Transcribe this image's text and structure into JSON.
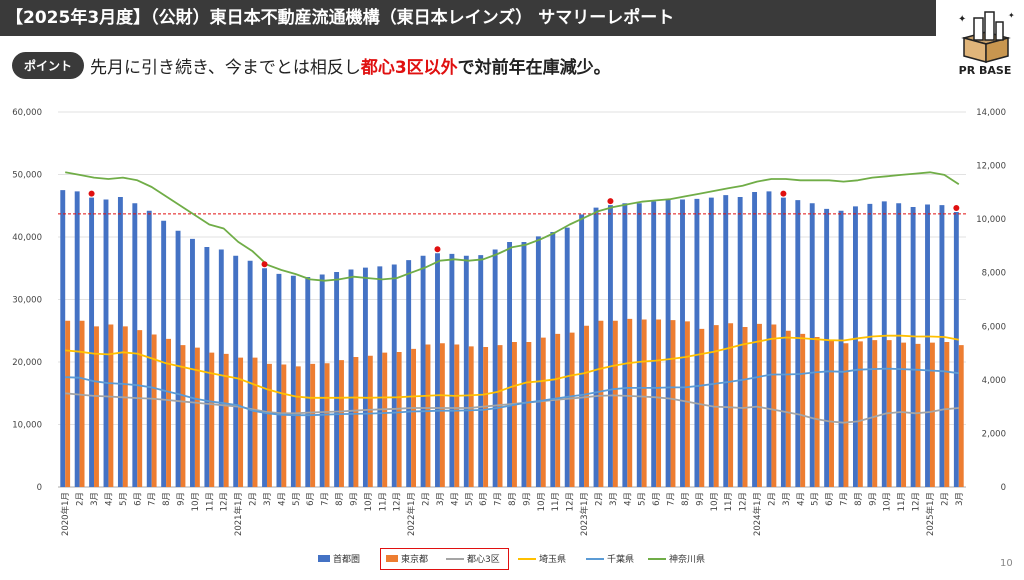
{
  "header": {
    "title": "【2025年3月度】（公財）東日本不動産流通機構（東日本レインズ） サマリーレポート",
    "logo_text": "PR BASE"
  },
  "point": {
    "badge": "ポイント",
    "text_before": "先月に引き続き、今までとは相反し",
    "text_red": "都心3区以外",
    "text_after": "で対前年在庫減少。"
  },
  "page_number": "10",
  "colors": {
    "shutoken": "#4472c4",
    "tokyo": "#ed7d31",
    "toshin": "#a5a5a5",
    "saitama": "#ffc000",
    "chiba": "#5b9bd5",
    "kanagawa": "#70ad47",
    "marker": "#e01010"
  },
  "chart_data": {
    "type": "bar",
    "x": [
      "2020年1月",
      "2月",
      "3月",
      "4月",
      "5月",
      "6月",
      "7月",
      "8月",
      "9月",
      "10月",
      "11月",
      "12月",
      "2021年1月",
      "2月",
      "3月",
      "4月",
      "5月",
      "6月",
      "7月",
      "8月",
      "9月",
      "10月",
      "11月",
      "12月",
      "2022年1月",
      "2月",
      "3月",
      "4月",
      "5月",
      "6月",
      "7月",
      "8月",
      "9月",
      "10月",
      "11月",
      "12月",
      "2023年1月",
      "2月",
      "3月",
      "4月",
      "5月",
      "6月",
      "7月",
      "8月",
      "9月",
      "10月",
      "11月",
      "12月",
      "2024年1月",
      "2月",
      "3月",
      "4月",
      "5月",
      "6月",
      "7月",
      "8月",
      "9月",
      "10月",
      "11月",
      "12月",
      "2025年1月",
      "2月",
      "3月"
    ],
    "left_axis": {
      "min": 0,
      "max": 60000,
      "ticks": [
        "0",
        "10,000",
        "20,000",
        "30,000",
        "40,000",
        "50,000",
        "60,000"
      ]
    },
    "right_axis": {
      "min": 0,
      "max": 14000,
      "ticks": [
        "0",
        "2,000",
        "4,000",
        "6,000",
        "8,000",
        "10,000",
        "12,000",
        "14,000"
      ]
    },
    "reference_line": 43700,
    "series": [
      {
        "name": "首都圏",
        "axis": "left",
        "kind": "bar",
        "values": [
          47500,
          47300,
          46300,
          46000,
          46400,
          45400,
          44200,
          42600,
          41000,
          39700,
          38400,
          38000,
          37000,
          36200,
          35000,
          34100,
          33800,
          33600,
          34000,
          34400,
          34800,
          35100,
          35300,
          35600,
          36300,
          37000,
          37400,
          37300,
          37000,
          37100,
          38000,
          39200,
          39200,
          40100,
          40800,
          41500,
          43600,
          44700,
          45100,
          45400,
          45400,
          45700,
          46000,
          46000,
          46100,
          46300,
          46700,
          46400,
          47200,
          47300,
          46300,
          45900,
          45400,
          44500,
          44200,
          44900,
          45300,
          45700,
          45400,
          44800,
          45200,
          45100,
          44000
        ]
      },
      {
        "name": "東京都",
        "axis": "left",
        "kind": "bar",
        "values": [
          26600,
          26600,
          25700,
          26000,
          25700,
          25100,
          24400,
          23700,
          22700,
          22300,
          21500,
          21300,
          20700,
          20700,
          19700,
          19600,
          19300,
          19700,
          19800,
          20300,
          20800,
          21000,
          21500,
          21600,
          22100,
          22800,
          23000,
          22800,
          22500,
          22400,
          22700,
          23200,
          23200,
          23900,
          24500,
          24700,
          25800,
          26600,
          26600,
          26900,
          26800,
          26800,
          26700,
          26500,
          25300,
          25900,
          26200,
          25600,
          26100,
          26000,
          25000,
          24500,
          24000,
          23400,
          23000,
          23300,
          23500,
          23500,
          23100,
          22900,
          23100,
          23200,
          22700
        ]
      },
      {
        "name": "都心3区",
        "axis": "right",
        "kind": "line",
        "values": [
          3500,
          3450,
          3400,
          3380,
          3350,
          3320,
          3300,
          3250,
          3200,
          3150,
          3100,
          3050,
          3000,
          2900,
          2800,
          2750,
          2750,
          2780,
          2800,
          2820,
          2850,
          2880,
          2900,
          2920,
          2950,
          2950,
          2950,
          2950,
          2950,
          3000,
          3050,
          3100,
          3150,
          3200,
          3250,
          3300,
          3350,
          3400,
          3420,
          3400,
          3380,
          3350,
          3300,
          3200,
          3100,
          3000,
          2980,
          2950,
          3000,
          2900,
          2800,
          2700,
          2550,
          2450,
          2400,
          2450,
          2600,
          2750,
          2800,
          2750,
          2800,
          2900,
          2950
        ]
      },
      {
        "name": "埼玉県",
        "axis": "right",
        "kind": "line",
        "values": [
          5100,
          5050,
          4980,
          4950,
          5030,
          4980,
          4800,
          4620,
          4500,
          4380,
          4260,
          4150,
          4050,
          3850,
          3650,
          3500,
          3380,
          3330,
          3330,
          3330,
          3340,
          3330,
          3340,
          3350,
          3380,
          3400,
          3430,
          3400,
          3420,
          3450,
          3550,
          3750,
          3900,
          3950,
          4020,
          4150,
          4250,
          4400,
          4520,
          4620,
          4680,
          4720,
          4780,
          4850,
          4950,
          5050,
          5180,
          5320,
          5420,
          5530,
          5580,
          5560,
          5520,
          5480,
          5470,
          5550,
          5620,
          5650,
          5650,
          5620,
          5620,
          5600,
          5500
        ]
      },
      {
        "name": "千葉県",
        "axis": "right",
        "kind": "line",
        "values": [
          4100,
          4080,
          3950,
          3880,
          3850,
          3800,
          3720,
          3580,
          3450,
          3300,
          3200,
          3130,
          3050,
          2850,
          2750,
          2700,
          2680,
          2680,
          2700,
          2720,
          2730,
          2740,
          2760,
          2780,
          2820,
          2830,
          2850,
          2850,
          2860,
          2880,
          2950,
          3050,
          3150,
          3220,
          3300,
          3380,
          3450,
          3550,
          3650,
          3700,
          3700,
          3700,
          3720,
          3720,
          3780,
          3850,
          3920,
          4000,
          4100,
          4200,
          4200,
          4220,
          4280,
          4320,
          4300,
          4380,
          4400,
          4420,
          4400,
          4380,
          4350,
          4320,
          4250
        ]
      },
      {
        "name": "神奈川県",
        "axis": "right",
        "kind": "line",
        "values": [
          11750,
          11650,
          11550,
          11500,
          11550,
          11450,
          11200,
          10850,
          10500,
          10150,
          9800,
          9650,
          9150,
          8800,
          8300,
          8100,
          7950,
          7750,
          7700,
          7750,
          7850,
          7800,
          7750,
          7800,
          8000,
          8200,
          8450,
          8500,
          8450,
          8500,
          8700,
          8950,
          9050,
          9250,
          9500,
          9800,
          10050,
          10300,
          10450,
          10550,
          10650,
          10700,
          10750,
          10850,
          10950,
          11050,
          11150,
          11250,
          11400,
          11500,
          11500,
          11450,
          11450,
          11450,
          11400,
          11450,
          11550,
          11600,
          11650,
          11700,
          11750,
          11650,
          11300
        ]
      }
    ],
    "markers": {
      "series": "首都圏",
      "at": [
        "3月",
        "3月",
        "3月",
        "3月",
        "3月",
        "3月"
      ]
    }
  }
}
